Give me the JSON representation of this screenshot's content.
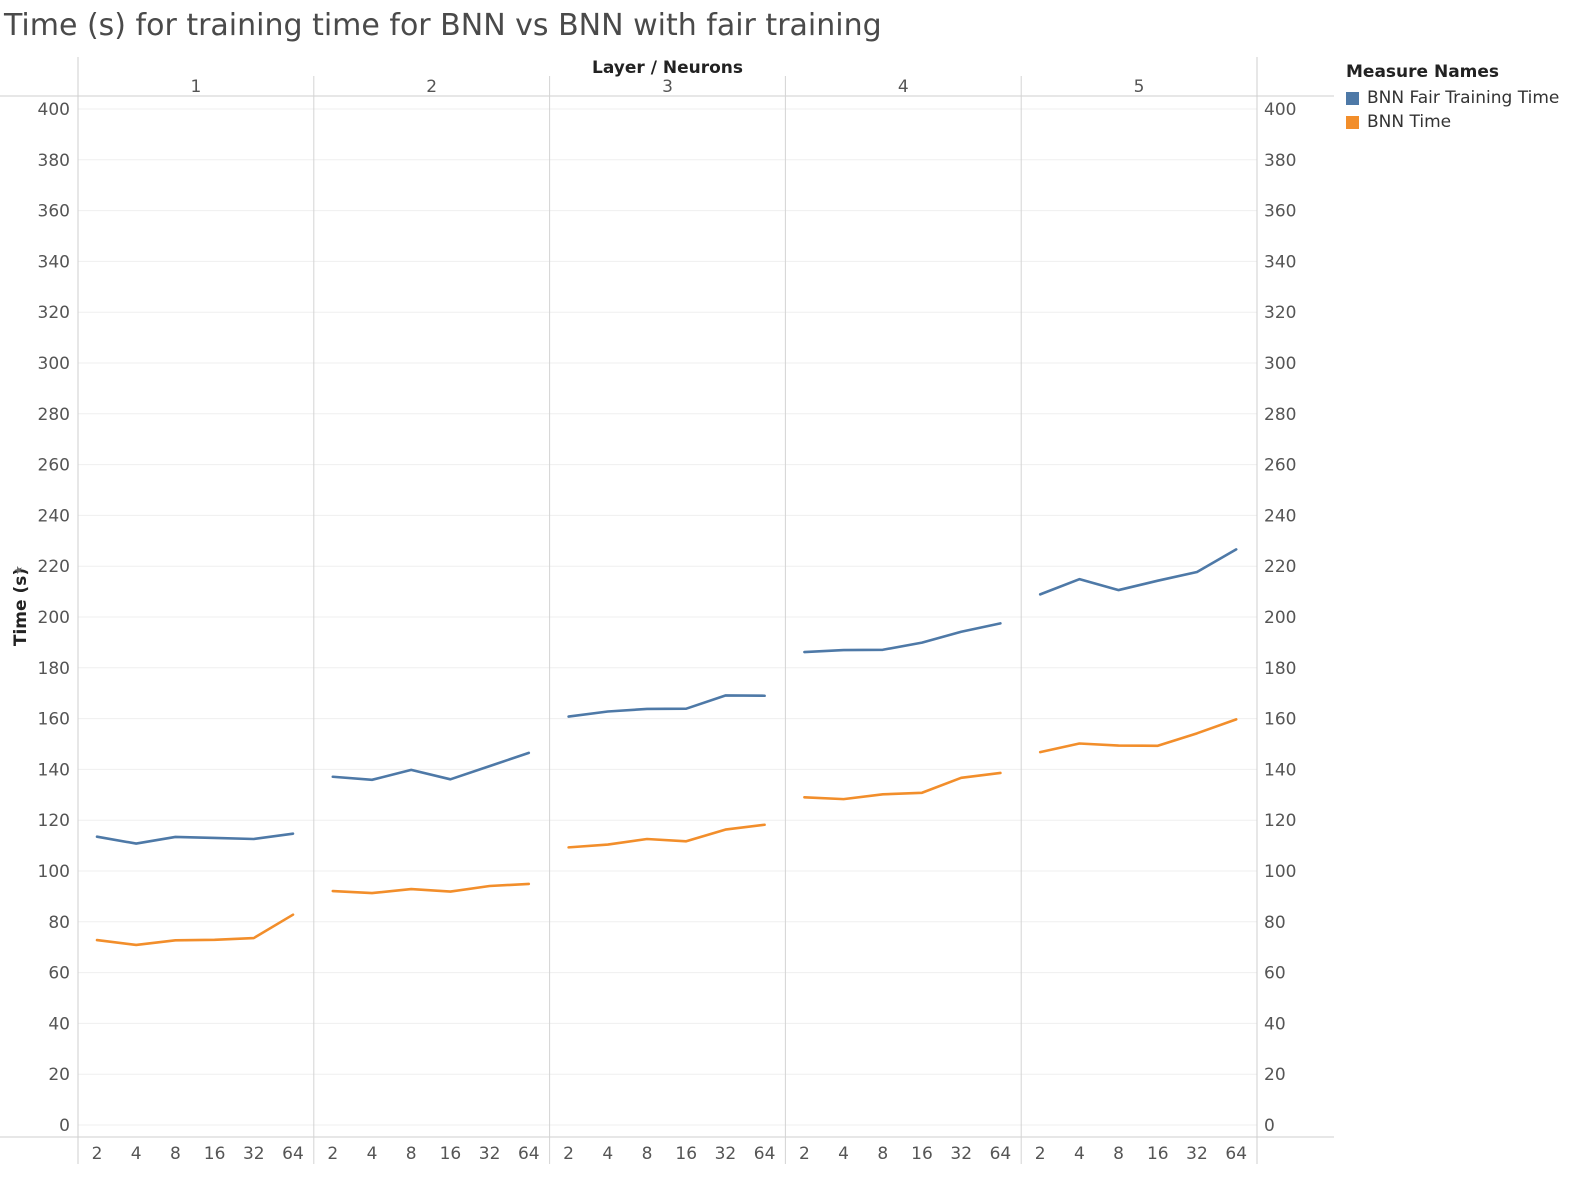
{
  "title": "Time (s) for training time for BNN vs BNN with fair training",
  "legend": {
    "title": "Measure Names",
    "items": [
      {
        "label": "BNN Fair Training Time",
        "color": "#4e79a7"
      },
      {
        "label": "BNN Time",
        "color": "#f28e2b"
      }
    ]
  },
  "chart_data": {
    "type": "line",
    "title": "Time (s) for training time for BNN vs BNN with fair training",
    "column_header": "Layer / Neurons",
    "ylabel": "Time (s)",
    "ylim": [
      0,
      400
    ],
    "yticks": [
      0,
      20,
      40,
      60,
      80,
      100,
      120,
      140,
      160,
      180,
      200,
      220,
      240,
      260,
      280,
      300,
      320,
      340,
      360,
      380,
      400
    ],
    "x": [
      "2",
      "4",
      "8",
      "16",
      "32",
      "64"
    ],
    "legend_position": "top-right",
    "panels": [
      {
        "layer": "1",
        "series": [
          {
            "name": "BNN Fair Training Time",
            "values": [
              113.5,
              110.8,
              113.4,
              113.0,
              112.6,
              114.7
            ]
          },
          {
            "name": "BNN Time",
            "values": [
              72.8,
              70.9,
              72.7,
              72.9,
              73.6,
              82.8
            ]
          }
        ]
      },
      {
        "layer": "2",
        "series": [
          {
            "name": "BNN Fair Training Time",
            "values": [
              137.1,
              135.9,
              139.8,
              136.1,
              141.3,
              146.5
            ]
          },
          {
            "name": "BNN Time",
            "values": [
              92.1,
              91.3,
              92.9,
              91.9,
              94.1,
              94.9
            ]
          }
        ]
      },
      {
        "layer": "3",
        "series": [
          {
            "name": "BNN Fair Training Time",
            "values": [
              160.8,
              162.8,
              163.8,
              163.9,
              169.1,
              169.0
            ]
          },
          {
            "name": "BNN Time",
            "values": [
              109.3,
              110.4,
              112.6,
              111.7,
              116.3,
              118.2
            ]
          }
        ]
      },
      {
        "layer": "4",
        "series": [
          {
            "name": "BNN Fair Training Time",
            "values": [
              186.2,
              187.0,
              187.1,
              189.9,
              194.2,
              197.5
            ]
          },
          {
            "name": "BNN Time",
            "values": [
              129.0,
              128.3,
              130.2,
              130.8,
              136.7,
              138.6
            ]
          }
        ]
      },
      {
        "layer": "5",
        "series": [
          {
            "name": "BNN Fair Training Time",
            "values": [
              208.9,
              214.9,
              210.6,
              214.3,
              217.7,
              226.6
            ]
          },
          {
            "name": "BNN Time",
            "values": [
              146.8,
              150.2,
              149.4,
              149.3,
              154.2,
              159.7
            ]
          }
        ]
      }
    ]
  }
}
